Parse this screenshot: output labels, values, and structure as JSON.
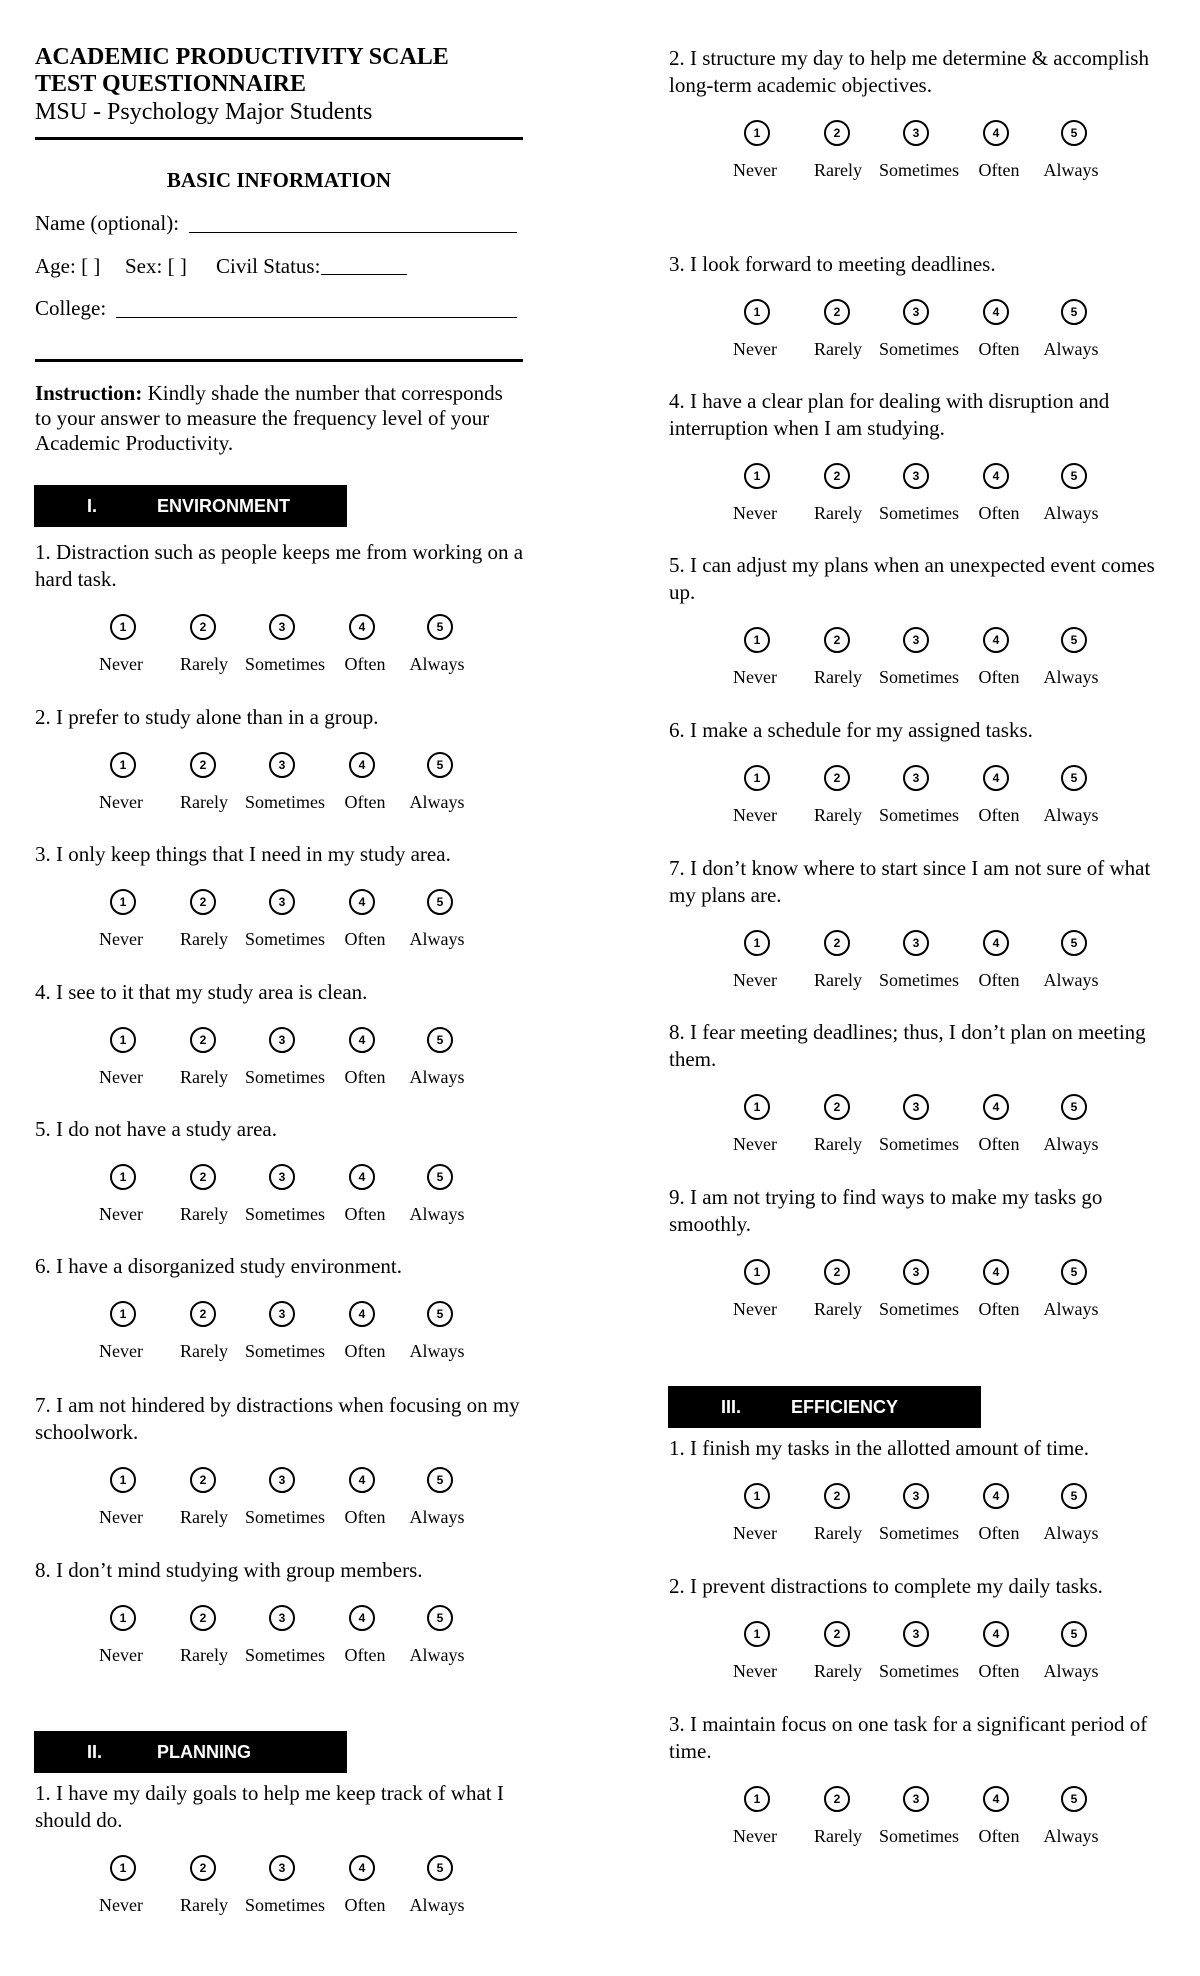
{
  "header": {
    "title_line1": "ACADEMIC PRODUCTIVITY SCALE",
    "title_line2": "TEST QUESTIONNAIRE",
    "subtitle": "MSU - Psychology Major Students"
  },
  "basic_info": {
    "heading": "BASIC INFORMATION",
    "name_label": "Name (optional):",
    "age_label": "Age: [   ]",
    "sex_label": "Sex: [   ]",
    "civil_status_label": "Civil Status:",
    "college_label": "College:"
  },
  "instruction": {
    "label": "Instruction:",
    "text": "Kindly shade the number that corresponds to your answer to measure the frequency level of your Academic Productivity."
  },
  "scale": {
    "numbers": [
      "1",
      "2",
      "3",
      "4",
      "5"
    ],
    "labels": [
      "Never",
      "Rarely",
      "Sometimes",
      "Often",
      "Always"
    ]
  },
  "sections": [
    {
      "numeral": "I.",
      "title": "ENVIRONMENT",
      "questions": [
        "1. Distraction such as people keeps me from working on a hard task.",
        "2. I prefer to study alone than in a group.",
        "3. I only keep things that I need in my study area.",
        "4. I see to it that my study area is clean.",
        "5. I do not have a study area.",
        "6. I have a disorganized study environment.",
        "7. I am not hindered by distractions when focusing on my schoolwork.",
        "8. I don’t mind studying with group members."
      ]
    },
    {
      "numeral": "II.",
      "title": "PLANNING",
      "questions": [
        "1. I have my daily goals to help me keep track of what I should do.",
        "2. I structure my day to help me determine & accomplish long-term academic objectives.",
        "3. I look forward to meeting deadlines.",
        "4. I have a clear plan for dealing with disruption and interruption when I am studying.",
        "5. I can adjust my plans when an unexpected event comes up.",
        "6. I make a schedule for my assigned tasks.",
        "7. I don’t know where to start since I am not sure of what my plans are.",
        "8. I fear meeting deadlines; thus, I don’t plan on meeting them.",
        "9. I am not trying to find ways to make my tasks go smoothly."
      ]
    },
    {
      "numeral": "III.",
      "title": "EFFICIENCY",
      "questions": [
        "1. I finish my tasks in the allotted amount of time.",
        "2. I prevent distractions to complete my daily tasks.",
        "3. I maintain focus on one task for a significant period of time."
      ]
    }
  ]
}
